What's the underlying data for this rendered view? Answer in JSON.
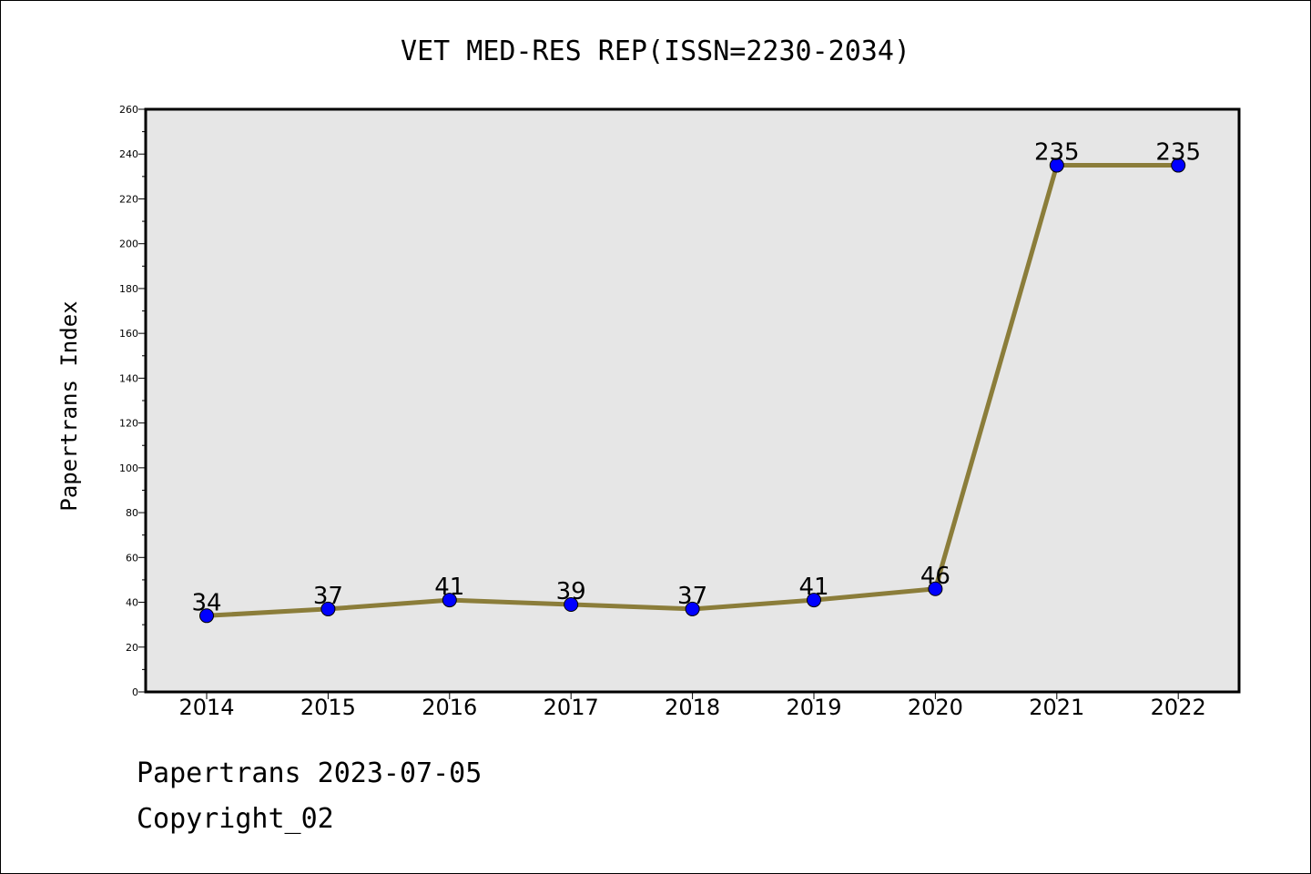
{
  "footer": {
    "line1": "Papertrans 2023-07-05",
    "line2": "Copyright_02"
  },
  "chart_data": {
    "type": "line",
    "title": "VET MED-RES REP(ISSN=2230-2034)",
    "ylabel": "Papertrans Index",
    "xlabel": "",
    "categories": [
      "2014",
      "2015",
      "2016",
      "2017",
      "2018",
      "2019",
      "2020",
      "2021",
      "2022"
    ],
    "values": [
      34,
      37,
      41,
      39,
      37,
      41,
      46,
      235,
      235
    ],
    "data_labels": [
      "34",
      "37",
      "41",
      "39",
      "37",
      "41",
      "46",
      "235",
      "235"
    ],
    "ylim": [
      0,
      260
    ],
    "yticks": [
      0,
      20,
      40,
      60,
      80,
      100,
      120,
      140,
      160,
      180,
      200,
      220,
      240,
      260
    ],
    "grid": false,
    "colors": {
      "line": "#8b7d3a",
      "marker": "#0000ff",
      "plot_background": "#e6e6e6"
    }
  }
}
